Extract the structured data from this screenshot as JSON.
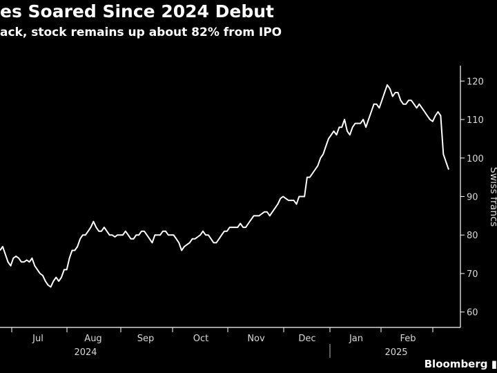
{
  "header": {
    "title": "es Soared Since 2024 Debut",
    "subtitle": "ack, stock remains up about 82% from IPO"
  },
  "brand": "Bloomberg",
  "colors": {
    "background": "#000000",
    "line": "#ffffff",
    "axis": "#ffffff",
    "text": "#d9d9d9"
  },
  "chart_data": {
    "type": "line",
    "title": "es Soared Since 2024 Debut",
    "subtitle": "ack, stock remains up about 82% from IPO",
    "ylabel": "Swiss francs",
    "ylim": [
      56,
      124
    ],
    "yticks": [
      60,
      70,
      80,
      90,
      100,
      110,
      120
    ],
    "y_axis_side": "right",
    "grid": false,
    "x_ticks": [
      "Jul",
      "Aug",
      "Sep",
      "Oct",
      "Nov",
      "Dec",
      "Jan",
      "Feb"
    ],
    "years": [
      "2024",
      "2025"
    ],
    "series": [
      {
        "values": [
          76,
          77,
          75,
          73,
          72,
          74,
          74.5,
          74,
          73,
          73,
          73.5,
          73,
          74,
          72,
          71,
          70,
          69.5,
          68,
          67,
          66.5,
          68,
          69,
          68,
          69,
          71,
          71,
          74,
          76,
          76,
          77,
          79,
          80,
          80,
          81,
          82,
          83.5,
          82,
          81,
          81,
          82,
          81,
          80,
          80,
          79.5,
          80,
          80,
          80,
          81,
          80,
          79,
          79,
          80,
          80,
          81,
          81,
          80,
          79,
          78,
          80,
          80,
          80,
          81,
          81,
          80,
          80,
          80,
          79,
          78,
          76,
          77,
          77.5,
          78,
          79,
          79,
          79.5,
          80,
          81,
          80,
          80,
          79,
          78,
          78,
          79,
          80,
          81,
          81,
          82,
          82,
          82,
          82,
          83,
          82,
          82,
          83,
          84,
          85,
          85,
          85,
          85.5,
          86,
          86,
          85,
          86,
          87,
          88,
          89.5,
          90,
          89.5,
          89,
          89,
          89,
          88,
          90,
          90,
          90,
          95,
          95,
          96,
          97,
          98,
          100,
          101,
          103,
          105,
          106,
          107,
          106,
          108,
          108,
          110,
          107,
          106,
          108,
          109,
          109,
          109,
          110,
          108,
          110,
          112,
          114,
          114,
          113,
          115,
          117,
          119,
          118,
          116,
          117,
          117,
          115,
          114,
          114,
          115,
          115,
          114,
          113,
          114,
          113,
          112,
          111,
          110,
          109.5,
          111,
          112,
          111,
          101,
          99,
          97
        ]
      }
    ]
  }
}
